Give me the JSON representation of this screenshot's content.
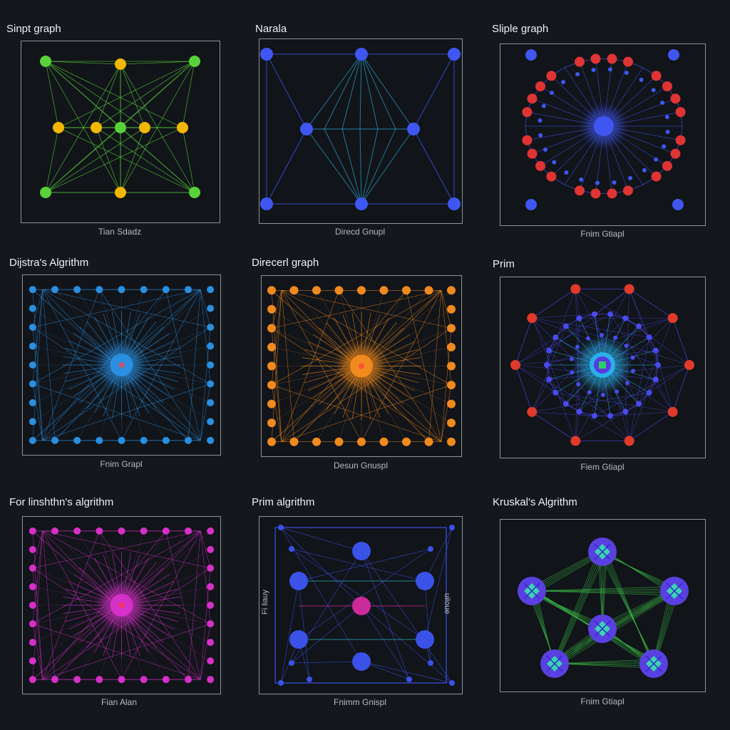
{
  "panels": [
    {
      "title": "Sinpt graph",
      "caption": "Tian Sdadz",
      "color": "#59d23a",
      "color2": "#f2b800",
      "kind": "bipartite"
    },
    {
      "title": "Narala",
      "caption": "Direcd Gnupl",
      "color": "#3f57f0",
      "color2": "#29a0c8",
      "kind": "diamond"
    },
    {
      "title": "Sliple graph",
      "caption": "Fnim Gtiapl",
      "color": "#e03434",
      "color2": "#3f57f0",
      "kind": "hubring"
    },
    {
      "title": "Dijstra's Algrithm",
      "caption": "Fnim Grapl",
      "color": "#2a8fe0",
      "color2": "#2a8fe0",
      "kind": "star"
    },
    {
      "title": "Direcerl graph",
      "caption": "Desun Gnuspl",
      "color": "#f08a1e",
      "color2": "#f08a1e",
      "kind": "star"
    },
    {
      "title": "Prim",
      "caption": "Fiem Gtiapl",
      "color": "#e03a2a",
      "color2": "#4a4af0",
      "kind": "prim"
    },
    {
      "title": "For linshthn's algrithm",
      "caption": "Fian Alan",
      "color": "#d530c8",
      "color2": "#d530c8",
      "kind": "star"
    },
    {
      "title": "Prim algrithm",
      "caption": "Fnimm Gnispl",
      "color": "#3a52e8",
      "color2": "#cc2a9a",
      "kind": "grid",
      "side_left": "Fi liauy",
      "side_right": "uiloue"
    },
    {
      "title": "Kruskal's Algrithm",
      "caption": "Fnim Gtiapl",
      "color": "#5a40e0",
      "color2": "#3cc84a",
      "kind": "kruskal"
    }
  ]
}
